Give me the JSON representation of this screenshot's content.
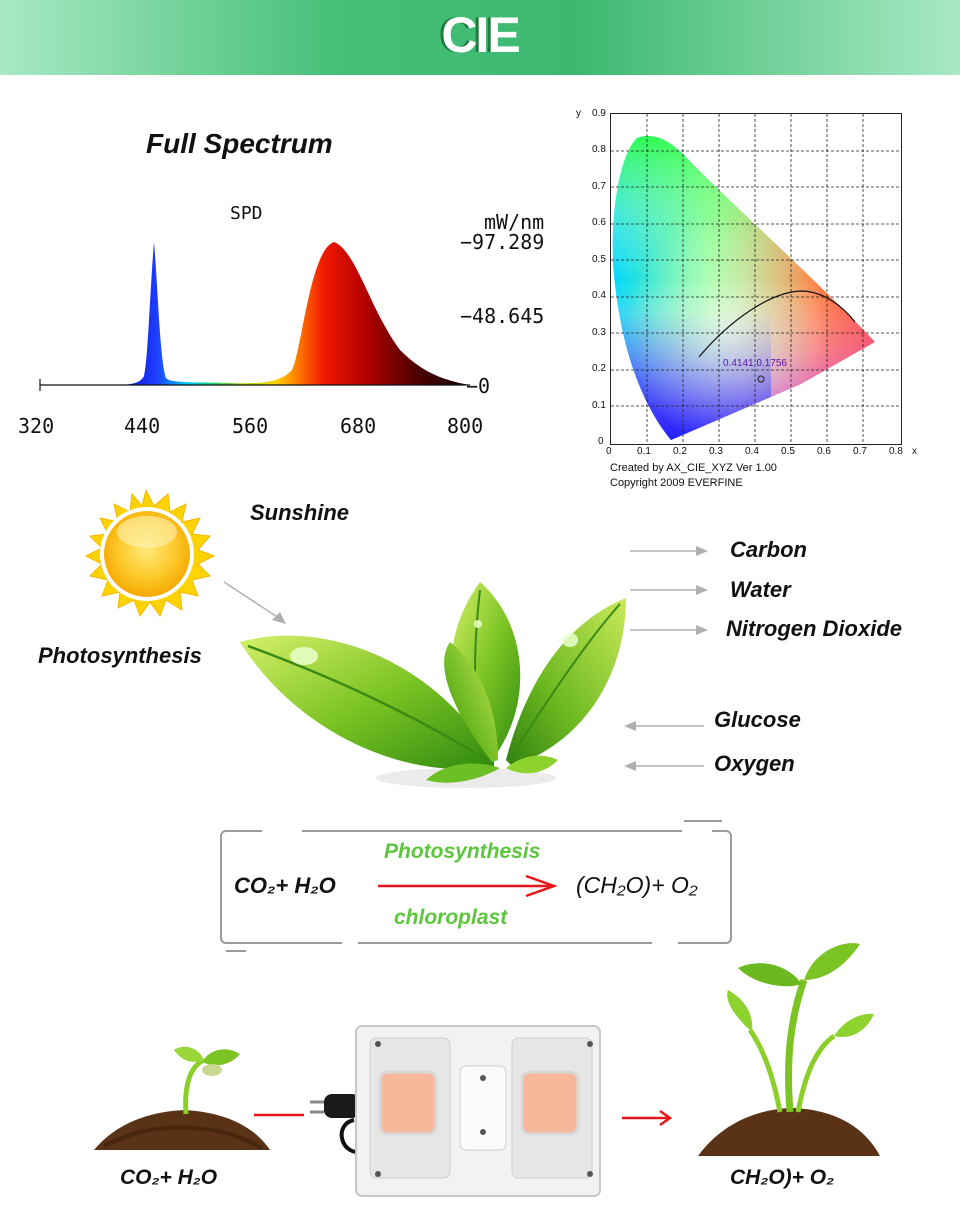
{
  "header": {
    "title": "CIE"
  },
  "spd": {
    "title": "Full Spectrum",
    "chart_label": "SPD",
    "unit": "mW/nm",
    "y_ticks": [
      "97.289",
      "48.645",
      "0"
    ],
    "x_ticks": [
      "320",
      "440",
      "560",
      "680",
      "800"
    ]
  },
  "cie": {
    "y_axis_letter": "y",
    "x_axis_letter": "x",
    "y_ticks": [
      "0.9",
      "0.8",
      "0.7",
      "0.6",
      "0.5",
      "0.4",
      "0.3",
      "0.2",
      "0.1",
      "0"
    ],
    "x_ticks": [
      "0",
      "0.1",
      "0.2",
      "0.3",
      "0.4",
      "0.5",
      "0.6",
      "0.7",
      "0.8"
    ],
    "point_label": "0.4141,0.1756",
    "credit_line1": "Created by AX_CIE_XYZ Ver 1.00",
    "credit_line2": "Copyright 2009 EVERFINE"
  },
  "photo": {
    "sunshine": "Sunshine",
    "photosynthesis": "Photosynthesis",
    "inputs": [
      "Carbon",
      "Water",
      "Nitrogen Dioxide"
    ],
    "outputs": [
      "Glucose",
      "Oxygen"
    ]
  },
  "equation": {
    "left": "CO₂+ H₂O",
    "top_label": "Photosynthesis",
    "bottom_label": "chloroplast",
    "right": "(CH₂O)+ O₂"
  },
  "bottom": {
    "left_label": "CO₂+ H₂O",
    "right_label": "CH₂O)+ O₂"
  },
  "colors": {
    "header_green": "#3cb870",
    "label_green": "#5cc63c",
    "arrow_red": "#e8141b",
    "arrow_gray": "#b0b0b0"
  }
}
